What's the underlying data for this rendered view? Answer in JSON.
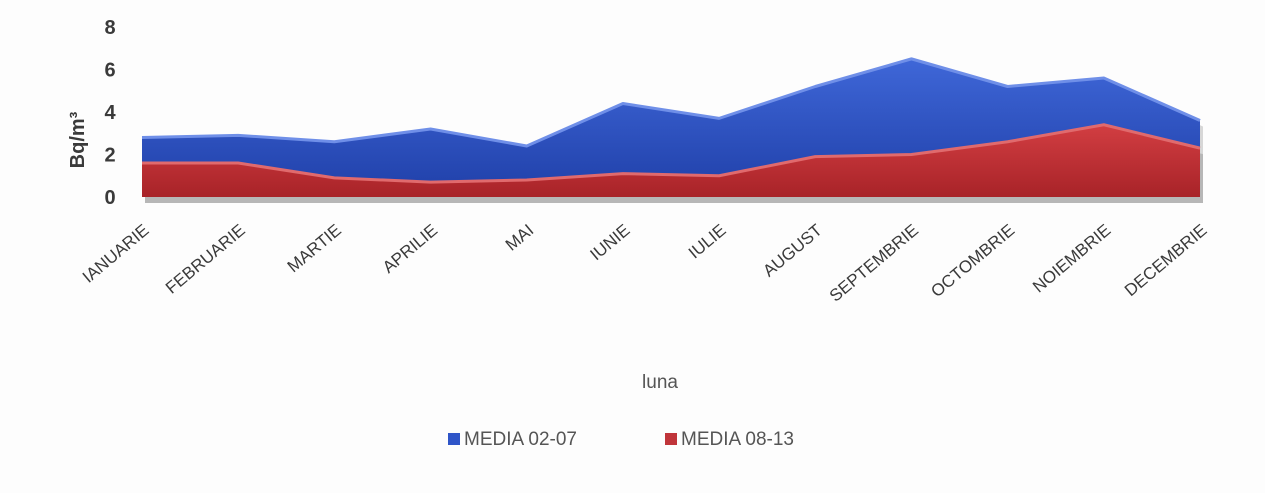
{
  "chart_data": {
    "type": "area",
    "title": "",
    "xlabel": "luna",
    "ylabel": "Bq/m³",
    "ylim": [
      0,
      8
    ],
    "yticks": [
      0,
      2,
      4,
      6,
      8
    ],
    "categories": [
      "IANUARIE",
      "FEBRUARIE",
      "MARTIE",
      "APRILIE",
      "MAI",
      "IUNIE",
      "IULIE",
      "AUGUST",
      "SEPTEMBRIE",
      "OCTOMBRIE",
      "NOIEMBRIE",
      "DECEMBRIE"
    ],
    "series": [
      {
        "name": "MEDIA 02-07",
        "color": "#2f55c8",
        "values": [
          2.8,
          2.9,
          2.6,
          3.2,
          2.4,
          4.4,
          3.7,
          5.2,
          6.5,
          5.2,
          5.6,
          3.6
        ]
      },
      {
        "name": "MEDIA 08-13",
        "color": "#c0353a",
        "values": [
          1.6,
          1.6,
          0.9,
          0.7,
          0.8,
          1.1,
          1.0,
          1.9,
          2.0,
          2.6,
          3.4,
          2.3
        ]
      }
    ],
    "legend_position": "bottom",
    "grid": false
  }
}
